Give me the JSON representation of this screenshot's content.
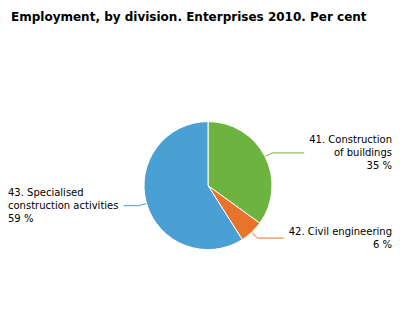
{
  "chart_data": {
    "type": "pie",
    "title": "Employment, by division. Enterprises 2010. Per cent",
    "categories": [
      "41. Construction\nof buildings",
      "42. Civil engineering",
      "43. Specialised\nconstruction activities"
    ],
    "values": [
      35,
      6,
      59
    ],
    "value_labels": [
      "35 %",
      "6 %",
      "59 %"
    ],
    "data_labels": true,
    "colors": [
      "#6db33f",
      "#e8732a",
      "#4a9fd4"
    ]
  }
}
